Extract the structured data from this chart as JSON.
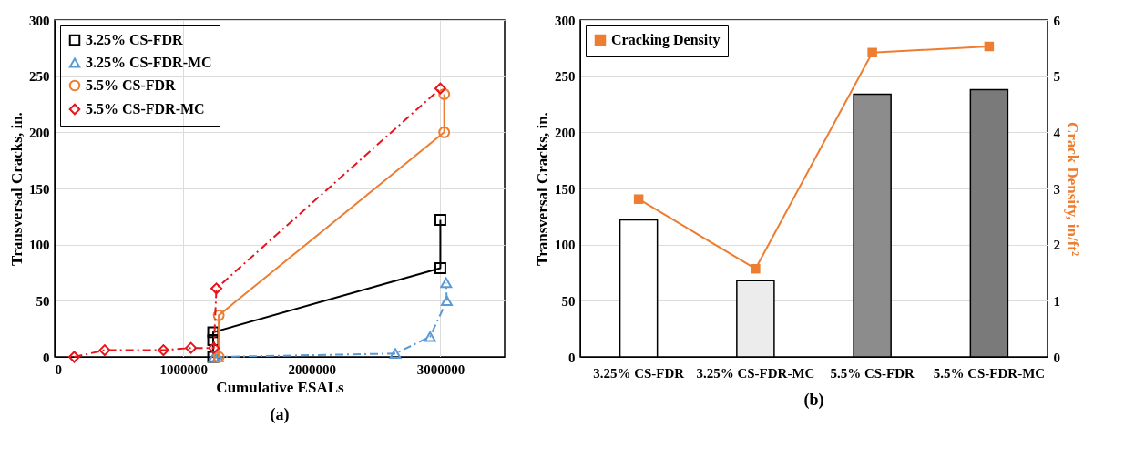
{
  "chart_data": [
    {
      "type": "line",
      "title": "(a)",
      "xlabel": "Cumulative  ESALs",
      "ylabel": "Transversal Cracks, in.",
      "xlim": [
        0,
        3500000
      ],
      "xticks": [
        0,
        1000000,
        2000000,
        3000000
      ],
      "ylim": [
        0,
        300
      ],
      "yticks": [
        0,
        50,
        100,
        150,
        200,
        250,
        300
      ],
      "grid": true,
      "legend": "top left",
      "series": [
        {
          "name": "3.25% CS-FDR",
          "color": "#000000",
          "marker": "square",
          "line_style": "solid",
          "x": [
            1233000,
            1233000,
            1233000,
            3000000,
            3000000
          ],
          "values": [
            0,
            15,
            22,
            79,
            122
          ]
        },
        {
          "name": "3.25% CS-FDR-MC",
          "color": "#5b9bd5",
          "marker": "triangle",
          "line_style": "dashed",
          "x": [
            1240000,
            1270000,
            2650000,
            2920000,
            3050000,
            3045000
          ],
          "values": [
            0,
            0,
            3,
            18,
            50,
            66
          ]
        },
        {
          "name": "5.5% CS-FDR",
          "color": "#ed7d31",
          "marker": "circle",
          "line_style": "solid",
          "x": [
            1276000,
            1276000,
            3030000,
            3030000
          ],
          "values": [
            0,
            37,
            200,
            234
          ]
        },
        {
          "name": "5.5% CS-FDR-MC",
          "color": "#e8141b",
          "marker": "diamond",
          "line_style": "dashed",
          "x": [
            152000,
            389000,
            846000,
            1060000,
            1238000,
            1258000,
            3000000
          ],
          "values": [
            0,
            6,
            6,
            8,
            8,
            61,
            239
          ]
        }
      ]
    },
    {
      "type": "bar",
      "title": "(b)",
      "categories": [
        "3.25% CS-FDR",
        "3.25% CS-FDR-MC",
        "5.5% CS-FDR",
        "5.5% CS-FDR-MC"
      ],
      "ylabel": "Transversal Cracks, in.",
      "y2label": "Crack Density, in/ft²",
      "ylim": [
        0,
        300
      ],
      "yticks": [
        0,
        50,
        100,
        150,
        200,
        250,
        300
      ],
      "y2lim": [
        0,
        6
      ],
      "y2ticks": [
        0,
        1,
        2,
        3,
        4,
        5,
        6
      ],
      "grid": "y",
      "legend": "top left",
      "series": [
        {
          "colors": [
            "#ffffff",
            "#ececec",
            "#8c8c8c",
            "#7a7a7a"
          ],
          "values": [
            122,
            68,
            234,
            238
          ]
        },
        {
          "type": "line",
          "name": "Cracking Density",
          "color": "#ed7d31",
          "axis": "y2",
          "marker": "square",
          "line_style": "solid",
          "values": [
            2.81,
            1.57,
            5.42,
            5.53
          ]
        }
      ]
    }
  ]
}
